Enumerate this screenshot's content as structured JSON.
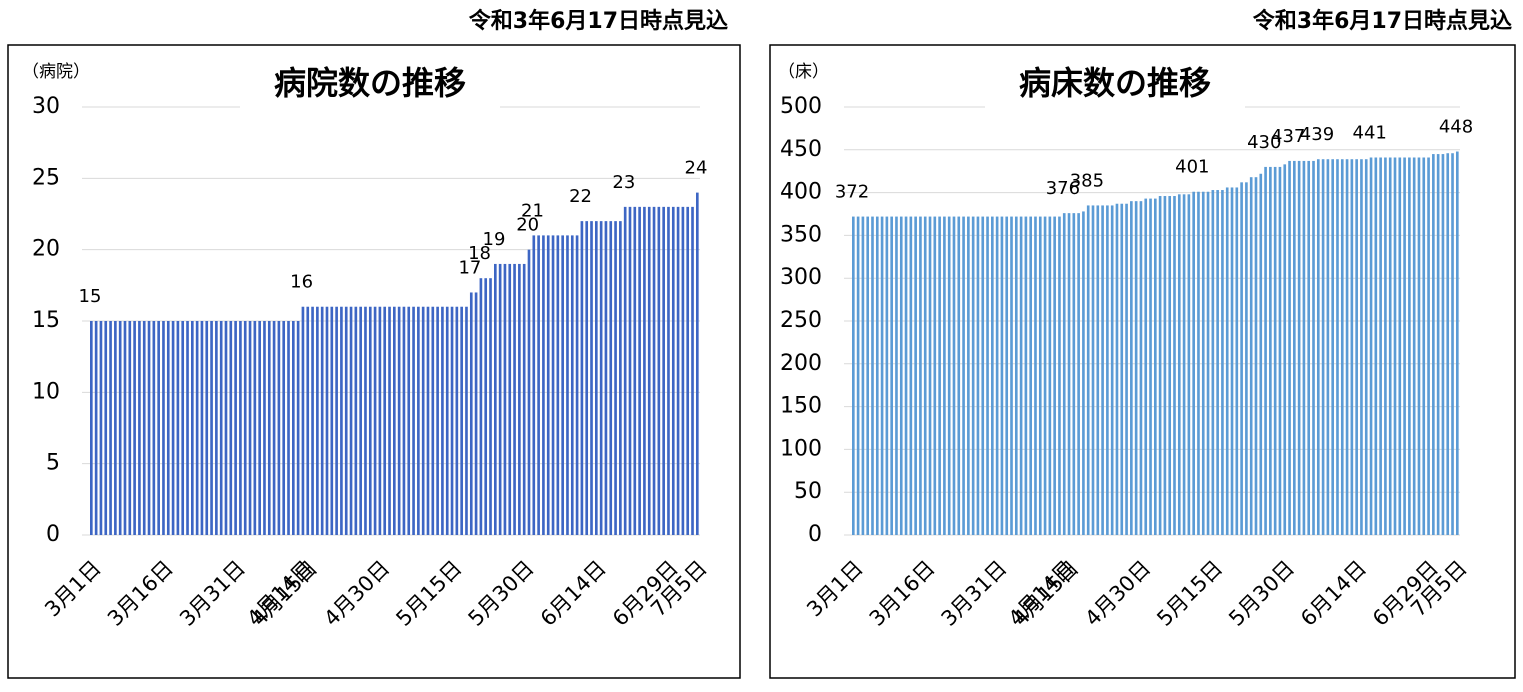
{
  "chart_data": [
    {
      "type": "bar",
      "note": "令和3年6月17日時点見込",
      "title": "病院数の推移",
      "unit_label": "（病院）",
      "color": "#3d66c4",
      "label_color": "#404040",
      "highlight_color": "#ff0000",
      "highlight": [
        "4月14日",
        "7月5日"
      ],
      "grid": true,
      "ylim": [
        0,
        30
      ],
      "yticks": [
        0,
        5,
        10,
        15,
        20,
        25,
        30
      ],
      "categories": [
        "3月1日",
        null,
        null,
        null,
        null,
        null,
        null,
        null,
        null,
        null,
        null,
        null,
        null,
        null,
        null,
        "3月16日",
        null,
        null,
        null,
        null,
        null,
        null,
        null,
        null,
        null,
        null,
        null,
        null,
        null,
        null,
        "3月31日",
        null,
        null,
        null,
        null,
        null,
        null,
        null,
        null,
        null,
        null,
        null,
        null,
        null,
        "4月14日",
        "4月15日",
        null,
        null,
        null,
        null,
        null,
        null,
        null,
        null,
        null,
        null,
        null,
        null,
        null,
        null,
        "4月30日",
        null,
        null,
        null,
        null,
        null,
        null,
        null,
        null,
        null,
        null,
        null,
        null,
        null,
        null,
        "5月15日",
        null,
        null,
        null,
        null,
        null,
        null,
        null,
        null,
        null,
        null,
        null,
        null,
        null,
        null,
        "5月30日",
        null,
        null,
        null,
        null,
        null,
        null,
        null,
        null,
        null,
        null,
        null,
        null,
        null,
        null,
        "6月14日",
        null,
        null,
        null,
        null,
        null,
        null,
        null,
        null,
        null,
        null,
        null,
        null,
        null,
        null,
        "6月29日",
        null,
        null,
        null,
        null,
        null,
        "7月5日"
      ],
      "values": [
        15,
        15,
        15,
        15,
        15,
        15,
        15,
        15,
        15,
        15,
        15,
        15,
        15,
        15,
        15,
        15,
        15,
        15,
        15,
        15,
        15,
        15,
        15,
        15,
        15,
        15,
        15,
        15,
        15,
        15,
        15,
        15,
        15,
        15,
        15,
        15,
        15,
        15,
        15,
        15,
        15,
        15,
        15,
        15,
        16,
        16,
        16,
        16,
        16,
        16,
        16,
        16,
        16,
        16,
        16,
        16,
        16,
        16,
        16,
        16,
        16,
        16,
        16,
        16,
        16,
        16,
        16,
        16,
        16,
        16,
        16,
        16,
        16,
        16,
        16,
        16,
        16,
        16,
        16,
        17,
        17,
        18,
        18,
        18,
        19,
        19,
        19,
        19,
        19,
        19,
        19,
        20,
        21,
        21,
        21,
        21,
        21,
        21,
        21,
        21,
        21,
        21,
        22,
        22,
        22,
        22,
        22,
        22,
        22,
        22,
        22,
        23,
        23,
        23,
        23,
        23,
        23,
        23,
        23,
        23,
        23,
        23,
        23,
        23,
        23,
        23,
        24
      ],
      "value_labels": [
        "15",
        null,
        null,
        null,
        null,
        null,
        null,
        null,
        null,
        null,
        null,
        null,
        null,
        null,
        null,
        null,
        null,
        null,
        null,
        null,
        null,
        null,
        null,
        null,
        null,
        null,
        null,
        null,
        null,
        null,
        null,
        null,
        null,
        null,
        null,
        null,
        null,
        null,
        null,
        null,
        null,
        null,
        null,
        null,
        "16",
        null,
        null,
        null,
        null,
        null,
        null,
        null,
        null,
        null,
        null,
        null,
        null,
        null,
        null,
        null,
        null,
        null,
        null,
        null,
        null,
        null,
        null,
        null,
        null,
        null,
        null,
        null,
        null,
        null,
        null,
        null,
        null,
        null,
        null,
        "17",
        null,
        "18",
        null,
        null,
        "19",
        null,
        null,
        null,
        null,
        null,
        null,
        "20",
        "21",
        null,
        null,
        null,
        null,
        null,
        null,
        null,
        null,
        null,
        "22",
        null,
        null,
        null,
        null,
        null,
        null,
        null,
        null,
        "23",
        null,
        null,
        null,
        null,
        null,
        null,
        null,
        null,
        null,
        null,
        null,
        null,
        null,
        null,
        "24"
      ]
    },
    {
      "type": "bar",
      "note": "令和3年6月17日時点見込",
      "title": "病床数の推移",
      "unit_label": "（床）",
      "color": "#5b9bd5",
      "label_color": "#404040",
      "highlight_color": "#ff0000",
      "highlight": [
        "4月14日",
        "7月5日"
      ],
      "grid": true,
      "ylim": [
        0,
        500
      ],
      "yticks": [
        0,
        50,
        100,
        150,
        200,
        250,
        300,
        350,
        400,
        450,
        500
      ],
      "categories": [
        "3月1日",
        null,
        null,
        null,
        null,
        null,
        null,
        null,
        null,
        null,
        null,
        null,
        null,
        null,
        null,
        "3月16日",
        null,
        null,
        null,
        null,
        null,
        null,
        null,
        null,
        null,
        null,
        null,
        null,
        null,
        null,
        "3月31日",
        null,
        null,
        null,
        null,
        null,
        null,
        null,
        null,
        null,
        null,
        null,
        null,
        null,
        "4月14日",
        "4月15日",
        null,
        null,
        null,
        null,
        null,
        null,
        null,
        null,
        null,
        null,
        null,
        null,
        null,
        null,
        "4月30日",
        null,
        null,
        null,
        null,
        null,
        null,
        null,
        null,
        null,
        null,
        null,
        null,
        null,
        null,
        "5月15日",
        null,
        null,
        null,
        null,
        null,
        null,
        null,
        null,
        null,
        null,
        null,
        null,
        null,
        null,
        "5月30日",
        null,
        null,
        null,
        null,
        null,
        null,
        null,
        null,
        null,
        null,
        null,
        null,
        null,
        null,
        "6月14日",
        null,
        null,
        null,
        null,
        null,
        null,
        null,
        null,
        null,
        null,
        null,
        null,
        null,
        null,
        "6月29日",
        null,
        null,
        null,
        null,
        null,
        "7月5日"
      ],
      "values": [
        372,
        372,
        372,
        372,
        372,
        372,
        372,
        372,
        372,
        372,
        372,
        372,
        372,
        372,
        372,
        372,
        372,
        372,
        372,
        372,
        372,
        372,
        372,
        372,
        372,
        372,
        372,
        372,
        372,
        372,
        372,
        372,
        372,
        372,
        372,
        372,
        372,
        372,
        372,
        372,
        372,
        372,
        372,
        372,
        376,
        376,
        376,
        376,
        378,
        385,
        385,
        385,
        385,
        385,
        385,
        387,
        387,
        387,
        390,
        390,
        390,
        393,
        393,
        393,
        396,
        396,
        396,
        396,
        398,
        398,
        398,
        401,
        401,
        401,
        401,
        403,
        403,
        403,
        406,
        406,
        406,
        412,
        412,
        418,
        418,
        422,
        430,
        430,
        430,
        430,
        433,
        437,
        437,
        437,
        437,
        437,
        437,
        439,
        439,
        439,
        439,
        439,
        439,
        439,
        439,
        439,
        439,
        439,
        441,
        441,
        441,
        441,
        441,
        441,
        441,
        441,
        441,
        441,
        441,
        441,
        441,
        445,
        445,
        445,
        446,
        446,
        448
      ],
      "value_labels": [
        "372",
        null,
        null,
        null,
        null,
        null,
        null,
        null,
        null,
        null,
        null,
        null,
        null,
        null,
        null,
        null,
        null,
        null,
        null,
        null,
        null,
        null,
        null,
        null,
        null,
        null,
        null,
        null,
        null,
        null,
        null,
        null,
        null,
        null,
        null,
        null,
        null,
        null,
        null,
        null,
        null,
        null,
        null,
        null,
        "376",
        null,
        null,
        null,
        null,
        "385",
        null,
        null,
        null,
        null,
        null,
        null,
        null,
        null,
        null,
        null,
        null,
        null,
        null,
        null,
        null,
        null,
        null,
        null,
        null,
        null,
        null,
        "401",
        null,
        null,
        null,
        null,
        null,
        null,
        null,
        null,
        null,
        null,
        null,
        null,
        null,
        null,
        "430",
        null,
        null,
        null,
        null,
        "437",
        null,
        null,
        null,
        null,
        null,
        "439",
        null,
        null,
        null,
        null,
        null,
        null,
        null,
        null,
        null,
        null,
        "441",
        null,
        null,
        null,
        null,
        null,
        null,
        null,
        null,
        null,
        null,
        null,
        null,
        null,
        null,
        null,
        null,
        null,
        "448"
      ]
    }
  ]
}
